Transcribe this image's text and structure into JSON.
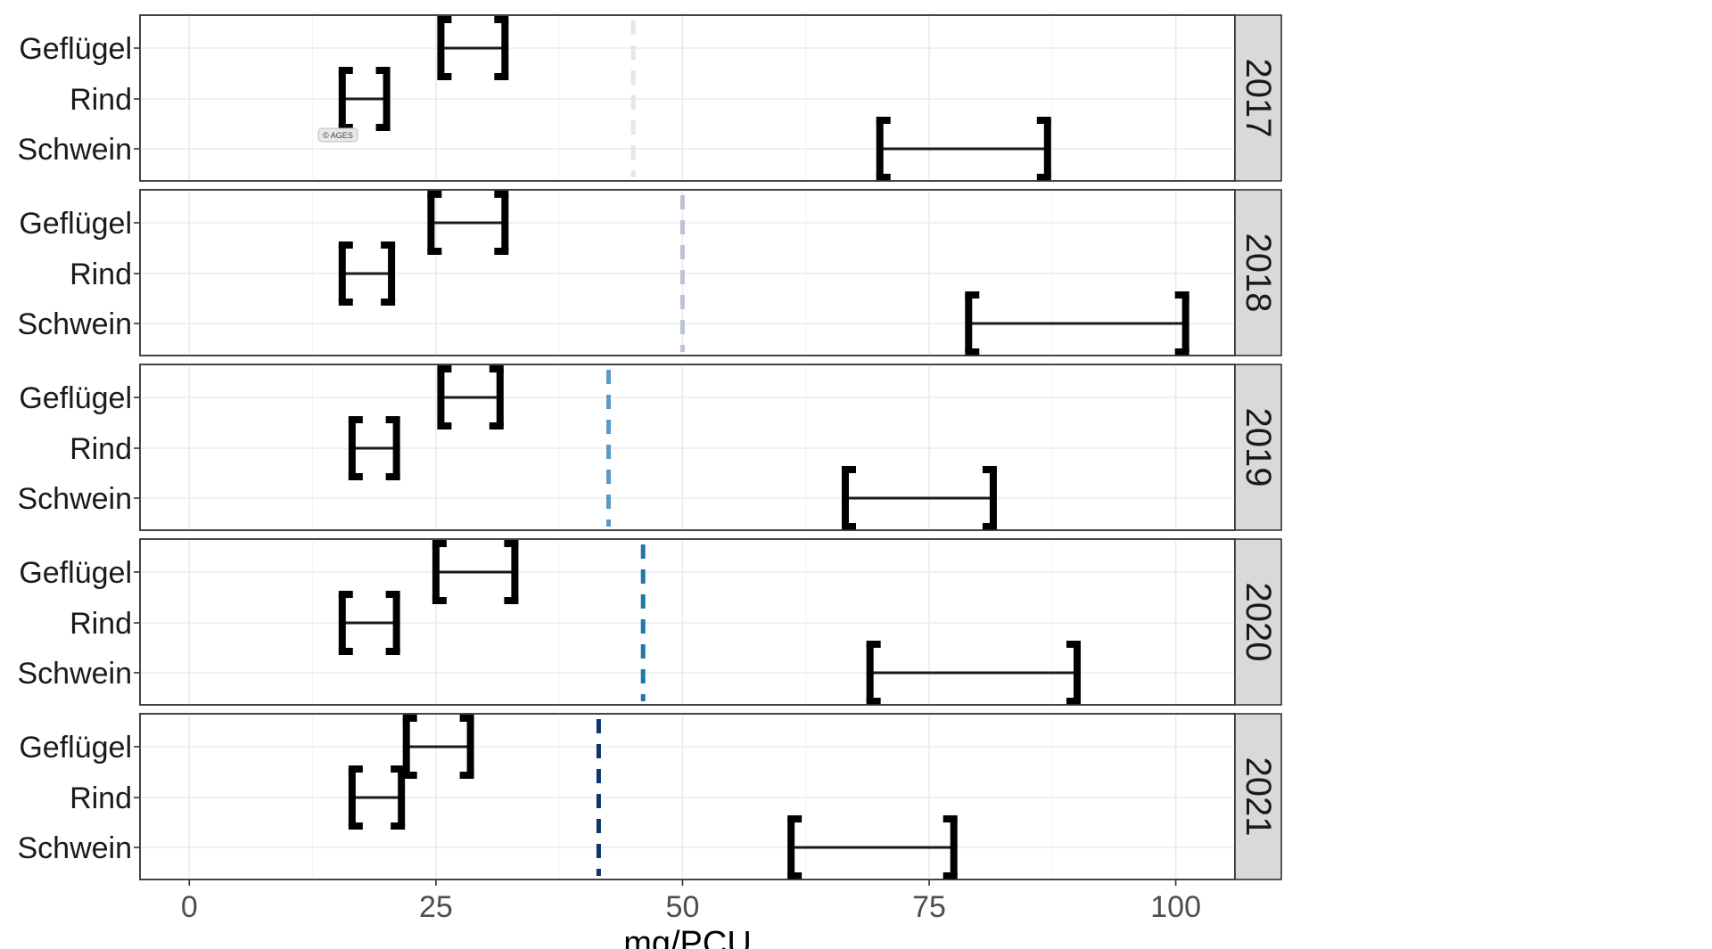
{
  "chart_data": {
    "type": "errorbar",
    "xlabel": "mg/PCU",
    "xlim": [
      -5,
      106
    ],
    "xticks": [
      0,
      25,
      50,
      75,
      100
    ],
    "categories": [
      "Geflügel",
      "Rind",
      "Schwein"
    ],
    "credit": "© AGES",
    "colors": {
      "2017": "#e5e5ea",
      "2018": "#bcc3d9",
      "2019": "#5b9ac7",
      "2020": "#1f77a8",
      "2021": "#08376b"
    },
    "panels": [
      {
        "year": "2017",
        "reference_line": 45,
        "intervals": [
          {
            "category": "Geflügel",
            "low": 25.5,
            "high": 32
          },
          {
            "category": "Rind",
            "low": 15.5,
            "high": 20
          },
          {
            "category": "Schwein",
            "low": 70,
            "high": 87
          }
        ]
      },
      {
        "year": "2018",
        "reference_line": 50,
        "intervals": [
          {
            "category": "Geflügel",
            "low": 24.5,
            "high": 32
          },
          {
            "category": "Rind",
            "low": 15.5,
            "high": 20.5
          },
          {
            "category": "Schwein",
            "low": 79,
            "high": 101
          }
        ]
      },
      {
        "year": "2019",
        "reference_line": 42.5,
        "intervals": [
          {
            "category": "Geflügel",
            "low": 25.5,
            "high": 31.5
          },
          {
            "category": "Rind",
            "low": 16.5,
            "high": 21
          },
          {
            "category": "Schwein",
            "low": 66.5,
            "high": 81.5
          }
        ]
      },
      {
        "year": "2020",
        "reference_line": 46,
        "intervals": [
          {
            "category": "Geflügel",
            "low": 25,
            "high": 33
          },
          {
            "category": "Rind",
            "low": 15.5,
            "high": 21
          },
          {
            "category": "Schwein",
            "low": 69,
            "high": 90
          }
        ]
      },
      {
        "year": "2021",
        "reference_line": 41.5,
        "intervals": [
          {
            "category": "Geflügel",
            "low": 22,
            "high": 28.5
          },
          {
            "category": "Rind",
            "low": 16.5,
            "high": 21.5
          },
          {
            "category": "Schwein",
            "low": 61,
            "high": 77.5
          }
        ]
      }
    ]
  }
}
